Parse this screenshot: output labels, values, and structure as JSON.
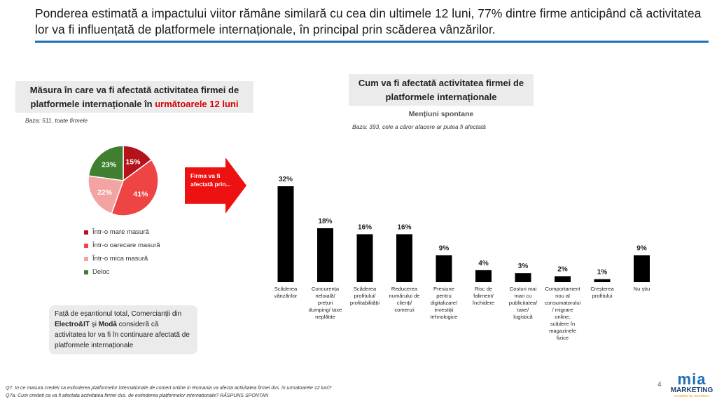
{
  "header": {
    "title": "Ponderea estimată a impactului viitor rămâne similară cu cea din ultimele 12 luni, 77% dintre firme anticipând că activitatea lor va fi influențată de platformele internaționale, în principal prin scăderea vânzărilor."
  },
  "left_panel": {
    "box_title_part1": "Măsura în care va fi afectată activitatea firmei de platformele internaționale în ",
    "box_title_highlight": "următoarele 12 luni",
    "base": "Baza: 511, toate firmele",
    "note_part1": "Față de eșantionul total, Comercianții din ",
    "note_bold1": "Electro&IT",
    "note_part2": " și ",
    "note_bold2": "Modă",
    "note_part3": " consideră că activitatea lor va fi în continuare afectată de platformele internaționale"
  },
  "arrow": {
    "label": "Firma va fi afectată prin..."
  },
  "right_panel": {
    "box_title": "Cum va fi afectată activitatea firmei de platformele internaționale",
    "subtitle": "Mențiuni spontane",
    "base": "Baza: 393, cele a căror afacere ar putea fi afectată"
  },
  "footnotes": {
    "q7": "Q7. In ce masura credeti ca extinderea platformelor internationale de comert online in Romania va afecta activitatea firmei dvs. in urmatoarele 12 luni?",
    "q7a": "Q7a. Cum credeti ca va fi afectata activitatea firmei dvs. de extinderea platformelor internationale? RĂSPUNS SPONTAN"
  },
  "page": {
    "number": "4"
  },
  "logo": {
    "name": "mia",
    "sub": "MARKETING",
    "tagline": "creative by numbers"
  },
  "chart_data": [
    {
      "type": "pie",
      "title": "",
      "labels": [
        "Într-o mare masură",
        "Într-o oarecare masură",
        "Într-o mica masură",
        "Deloc"
      ],
      "values": [
        15,
        41,
        22,
        23
      ],
      "value_labels": [
        "15%",
        "41%",
        "22%",
        "23%"
      ],
      "colors": [
        "#b5121b",
        "#ee4444",
        "#f4a3a3",
        "#3f7f2f"
      ],
      "legend": "bottom"
    },
    {
      "type": "bar",
      "title": "",
      "categories": [
        "Scăderea vânzărilor",
        "Concurența neloială/ prețuri dumping/ taxe neplătite",
        "Scăderea profitului/ profitabilității",
        "Reducerea numărului de clienți/ comenzi",
        "Presiune pentru digitalizare/ investiții tehnologice",
        "Risc de faliment/ închidere",
        "Costuri mai mari cu publicitatea/ taxe/ logistică",
        "Comportament nou al consumatorului / migrare online, scădere în magazinele fizice",
        "Creșterea profitului",
        "Nu știu"
      ],
      "values": [
        32,
        18,
        16,
        16,
        9,
        4,
        3,
        2,
        1,
        9
      ],
      "value_labels": [
        "32%",
        "18%",
        "16%",
        "16%",
        "9%",
        "4%",
        "3%",
        "2%",
        "1%",
        "9%"
      ],
      "ylim": [
        0,
        32
      ],
      "color": "#000000",
      "grid": false
    }
  ]
}
